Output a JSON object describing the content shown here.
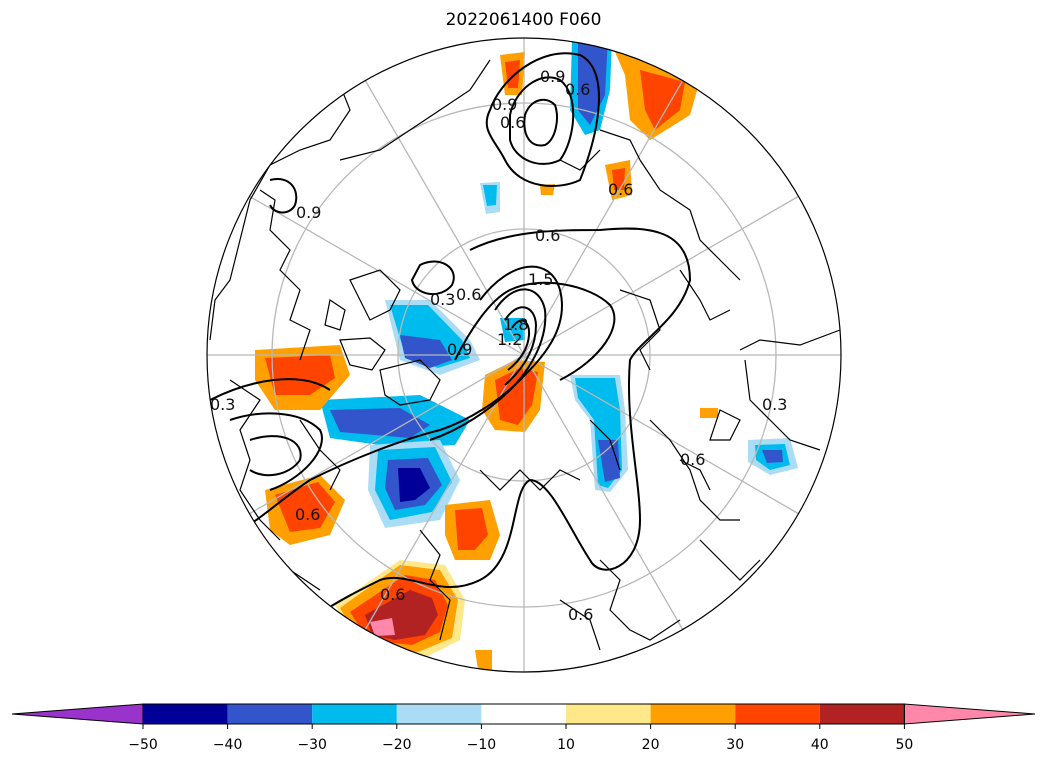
{
  "title": "2022061400 F060",
  "colorbar": {
    "ticks": [
      "−50",
      "−40",
      "−30",
      "−20",
      "−10",
      "10",
      "20",
      "30",
      "40",
      "50"
    ],
    "colors": {
      "lt_neg50": "#9933cc",
      "neg50_neg40": "#000099",
      "neg40_neg30": "#3355cc",
      "neg30_neg20": "#00bbee",
      "neg20_neg10": "#aaddf5",
      "neg10_10": "#ffffff",
      "10_20": "#ffe88a",
      "20_30": "#ffa000",
      "30_40": "#ff4400",
      "40_50": "#b22222",
      "gt_50": "#ff88aa"
    }
  },
  "contour_labels": [
    "0.6",
    "0.3",
    "0.6",
    "1.5",
    "1.2",
    "1.8",
    "0.9",
    "0.9",
    "0.6",
    "0.9",
    "0.6",
    "0.3",
    "0.6",
    "0.6",
    "0.6",
    "0.6",
    "0.9",
    "0.6",
    "0.3"
  ]
}
